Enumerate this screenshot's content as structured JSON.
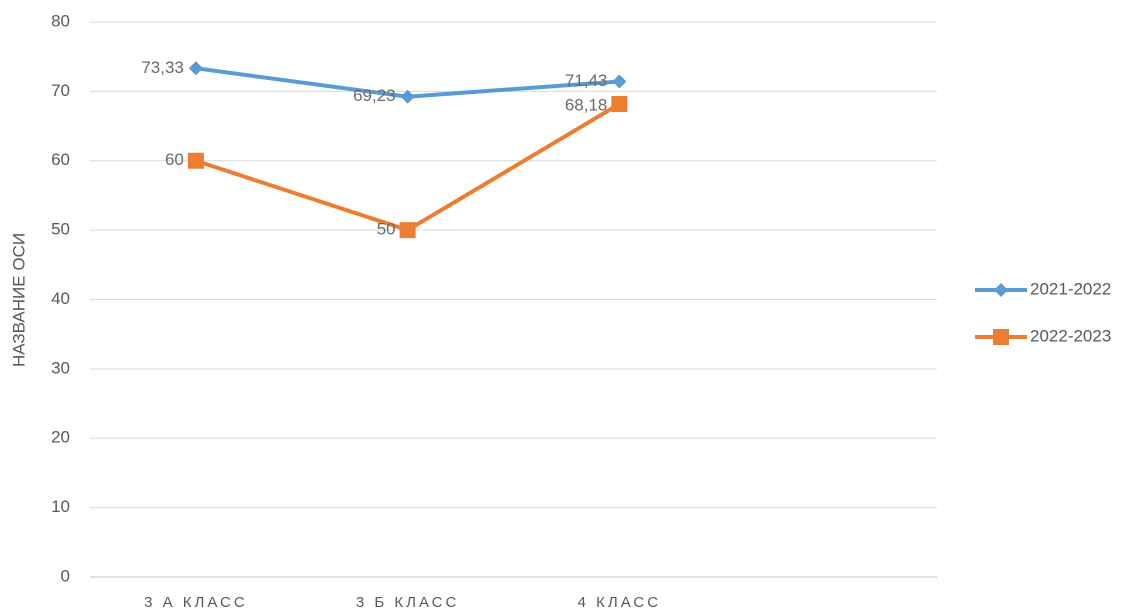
{
  "chart_data": {
    "type": "line",
    "categories": [
      "3 А КЛАСС",
      "3 Б КЛАСС",
      "4 КЛАСС",
      null
    ],
    "y_label": "НАЗВАНИЕ ОСИ",
    "series": [
      {
        "name": "2021-2022",
        "color": "#5b9bd5",
        "marker": "diamond",
        "values": [
          73.33,
          69.23,
          71.43,
          null
        ],
        "value_labels": [
          "73,33",
          "69,23",
          "71,43",
          null
        ]
      },
      {
        "name": "2022-2023",
        "color": "#ed7d31",
        "marker": "square",
        "values": [
          60,
          50,
          68.18,
          null
        ],
        "value_labels": [
          "60",
          "50",
          "68,18",
          null
        ]
      }
    ],
    "ylim": [
      0,
      80
    ],
    "yticks": [
      0,
      10,
      20,
      30,
      40,
      50,
      60,
      70,
      80
    ],
    "grid": true,
    "legend": "right"
  }
}
